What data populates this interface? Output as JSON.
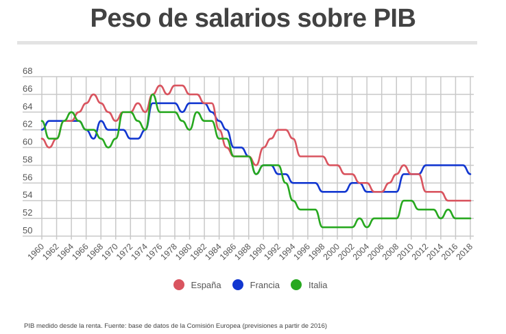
{
  "header": {
    "title": "Peso de salarios sobre PIB"
  },
  "footnote": "PIB medido desde la renta. Fuente: base de datos de la Comisión Europea (previsiones a partir de 2016)",
  "legend": [
    {
      "label": "España",
      "color": "#d9545f"
    },
    {
      "label": "Francia",
      "color": "#1237d0"
    },
    {
      "label": "Italia",
      "color": "#27a81f"
    }
  ],
  "chart_data": {
    "type": "line",
    "title": "Peso de salarios sobre PIB",
    "xlabel": "",
    "ylabel": "",
    "ylim": [
      50,
      68
    ],
    "yticks": [
      68,
      66,
      64,
      62,
      60,
      58,
      56,
      54,
      52,
      50
    ],
    "xticks": [
      "1960",
      "1962",
      "1964",
      "1966",
      "1968",
      "1970",
      "1972",
      "1974",
      "1976",
      "1978",
      "1980",
      "1982",
      "1984",
      "1986",
      "1988",
      "1990",
      "1992",
      "1994",
      "1996",
      "1998",
      "2000",
      "2002",
      "2004",
      "2006",
      "2008",
      "2010",
      "2012",
      "2014",
      "2016",
      "2018"
    ],
    "grid": true,
    "legend_position": "bottom",
    "x": [
      1960,
      1961,
      1962,
      1963,
      1964,
      1965,
      1966,
      1967,
      1968,
      1969,
      1970,
      1971,
      1972,
      1973,
      1974,
      1975,
      1976,
      1977,
      1978,
      1979,
      1980,
      1981,
      1982,
      1983,
      1984,
      1985,
      1986,
      1987,
      1988,
      1989,
      1990,
      1991,
      1992,
      1993,
      1994,
      1995,
      1996,
      1997,
      1998,
      1999,
      2000,
      2001,
      2002,
      2003,
      2004,
      2005,
      2006,
      2007,
      2008,
      2009,
      2010,
      2011,
      2012,
      2013,
      2014,
      2015,
      2016,
      2017,
      2018
    ],
    "series": [
      {
        "name": "España",
        "color": "#d9545f",
        "values": [
          61,
          60,
          61,
          63,
          63,
          64,
          65,
          66,
          65,
          64,
          63,
          64,
          64,
          65,
          64,
          66,
          67,
          66,
          67,
          67,
          66,
          66,
          65,
          65,
          62,
          60,
          59,
          59,
          59,
          58,
          60,
          61,
          62,
          62,
          61,
          59,
          59,
          59,
          59,
          58,
          58,
          57,
          57,
          56,
          56,
          55,
          55,
          56,
          57,
          58,
          57,
          57,
          55,
          55,
          55,
          54,
          54,
          54,
          54
        ]
      },
      {
        "name": "Francia",
        "color": "#1237d0",
        "values": [
          62,
          63,
          63,
          63,
          63,
          63,
          62,
          61,
          63,
          62,
          62,
          62,
          61,
          61,
          62,
          65,
          65,
          65,
          65,
          64,
          65,
          65,
          65,
          64,
          63,
          62,
          60,
          60,
          59,
          57,
          58,
          58,
          57,
          57,
          56,
          56,
          56,
          56,
          55,
          55,
          55,
          55,
          56,
          56,
          55,
          55,
          55,
          55,
          55,
          57,
          57,
          57,
          58,
          58,
          58,
          58,
          58,
          58,
          57
        ]
      },
      {
        "name": "Italia",
        "color": "#27a81f",
        "values": [
          63,
          61,
          61,
          63,
          64,
          63,
          62,
          62,
          61,
          60,
          61,
          64,
          64,
          63,
          62,
          66,
          64,
          64,
          64,
          63,
          62,
          64,
          63,
          63,
          61,
          61,
          59,
          59,
          59,
          57,
          58,
          58,
          58,
          56,
          54,
          53,
          53,
          53,
          51,
          51,
          51,
          51,
          51,
          52,
          51,
          52,
          52,
          52,
          52,
          54,
          54,
          53,
          53,
          53,
          52,
          53,
          52,
          52,
          52
        ]
      }
    ]
  }
}
